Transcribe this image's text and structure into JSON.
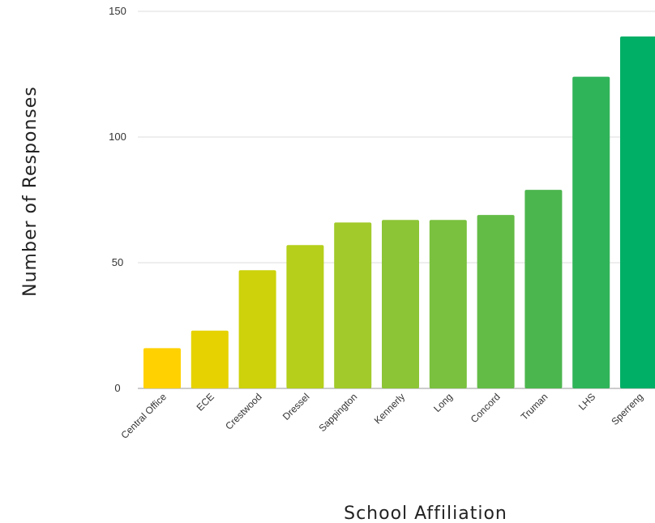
{
  "chart_data": {
    "type": "bar",
    "title": "",
    "xlabel": "School Affiliation",
    "ylabel": "Number of Responses",
    "ylim": [
      0,
      150
    ],
    "yticks": [
      0,
      50,
      100,
      150
    ],
    "grid": true,
    "categories": [
      "Central Office",
      "ECE",
      "Crestwood",
      "Dressel",
      "Sappington",
      "Kennerly",
      "Long",
      "Concord",
      "Truman",
      "LHS",
      "Sperreng"
    ],
    "values": [
      16,
      23,
      47,
      57,
      66,
      67,
      67,
      69,
      79,
      124,
      140
    ],
    "colors": [
      "#FFD100",
      "#E6D200",
      "#CDD20B",
      "#B5CF1A",
      "#A2CA2A",
      "#8CC536",
      "#79C13E",
      "#63BC46",
      "#4CB64E",
      "#30B45A",
      "#00AF66"
    ]
  }
}
